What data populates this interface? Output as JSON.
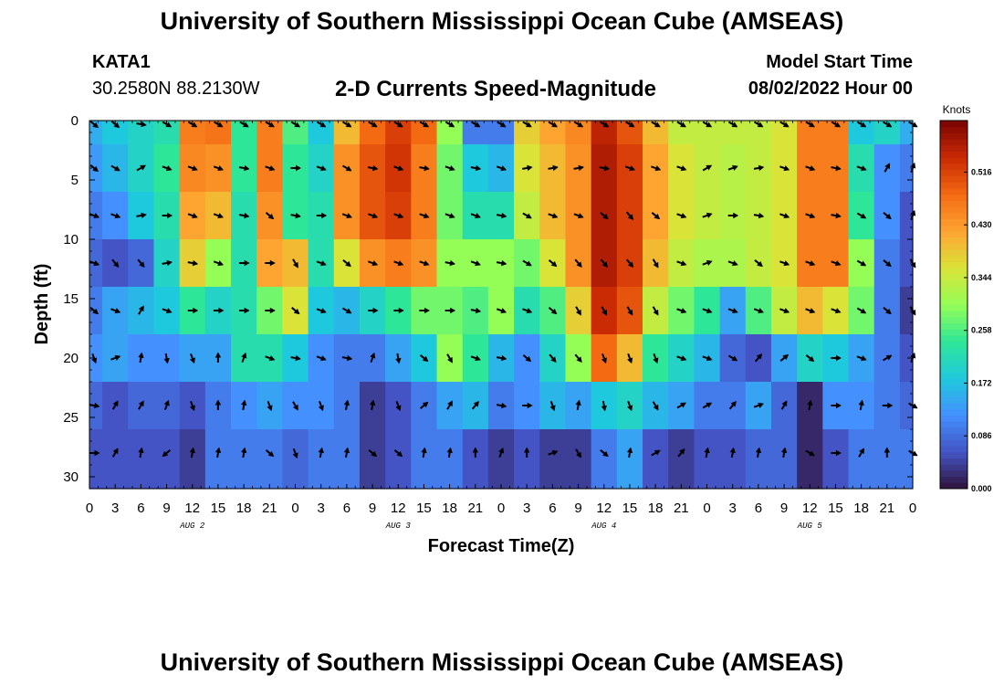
{
  "header": {
    "title": "University of Southern Mississippi Ocean Cube (AMSEAS)",
    "station": "KATA1",
    "coords": "30.2580N  88.2130W",
    "plot_title": "2-D Currents Speed-Magnitude",
    "model_label": "Model Start Time",
    "model_time": "08/02/2022 Hour 00"
  },
  "footer": {
    "title": "University of Southern Mississippi Ocean Cube (AMSEAS)"
  },
  "chart_data": {
    "type": "heatmap",
    "title": "2-D Currents Speed-Magnitude",
    "xlabel": "Forecast Time(Z)",
    "ylabel": "Depth (ft)",
    "xlim": [
      0,
      96
    ],
    "ylim": [
      0,
      31
    ],
    "x_tick_labels": [
      "0",
      "3",
      "6",
      "9",
      "12",
      "15",
      "18",
      "21",
      "0",
      "3",
      "6",
      "9",
      "12",
      "15",
      "18",
      "21",
      "0",
      "3",
      "6",
      "9",
      "12",
      "15",
      "18",
      "21",
      "0",
      "3",
      "6",
      "9",
      "12",
      "15",
      "18",
      "21",
      "0"
    ],
    "y_ticks": [
      0,
      5,
      10,
      15,
      20,
      25,
      30
    ],
    "y_tick_labels": [
      "0",
      "5",
      "10",
      "15",
      "20",
      "25",
      "30"
    ],
    "date_labels": [
      {
        "label": "AUG 2",
        "hour": 12
      },
      {
        "label": "AUG 3",
        "hour": 36
      },
      {
        "label": "AUG 4",
        "hour": 60
      },
      {
        "label": "AUG 5",
        "hour": 84
      }
    ],
    "colorbar": {
      "title": "Knots",
      "ticks": [
        0.0,
        0.086,
        0.172,
        0.258,
        0.344,
        0.43,
        0.516
      ],
      "tick_labels": [
        "0.000",
        "0.086",
        "0.172",
        "0.258",
        "0.344",
        "0.430",
        "0.516"
      ],
      "range": [
        0,
        0.6
      ],
      "colors": [
        "#30123b",
        "#4454c4",
        "#4490fe",
        "#1fc9dd",
        "#2ee697",
        "#94fe57",
        "#dae338",
        "#fea431",
        "#f36a13",
        "#ca2a04",
        "#7a0403"
      ]
    },
    "depths": [
      0,
      4,
      8,
      12,
      16,
      20,
      24,
      28
    ],
    "times": [
      0,
      3,
      6,
      9,
      12,
      15,
      18,
      21,
      24,
      27,
      30,
      33,
      36,
      39,
      42,
      45,
      48,
      51,
      54,
      57,
      60,
      63,
      66,
      69,
      72,
      75,
      78,
      81,
      84,
      87,
      90,
      93,
      96
    ],
    "speed_knots": [
      [
        0.15,
        0.18,
        0.2,
        0.22,
        0.46,
        0.47,
        0.24,
        0.46,
        0.26,
        0.18,
        0.4,
        0.48,
        0.52,
        0.48,
        0.3,
        0.1,
        0.1,
        0.38,
        0.42,
        0.45,
        0.55,
        0.5,
        0.4,
        0.34,
        0.34,
        0.34,
        0.34,
        0.36,
        0.46,
        0.46,
        0.18,
        0.2,
        0.15
      ],
      [
        0.13,
        0.16,
        0.2,
        0.24,
        0.45,
        0.44,
        0.24,
        0.46,
        0.24,
        0.2,
        0.44,
        0.5,
        0.53,
        0.46,
        0.28,
        0.18,
        0.16,
        0.36,
        0.4,
        0.44,
        0.56,
        0.52,
        0.42,
        0.36,
        0.34,
        0.33,
        0.34,
        0.36,
        0.46,
        0.46,
        0.22,
        0.12,
        0.1
      ],
      [
        0.1,
        0.12,
        0.18,
        0.22,
        0.42,
        0.4,
        0.22,
        0.44,
        0.24,
        0.22,
        0.44,
        0.5,
        0.52,
        0.46,
        0.28,
        0.22,
        0.22,
        0.34,
        0.4,
        0.44,
        0.56,
        0.52,
        0.42,
        0.36,
        0.34,
        0.33,
        0.34,
        0.36,
        0.46,
        0.46,
        0.24,
        0.12,
        0.06
      ],
      [
        0.08,
        0.06,
        0.08,
        0.2,
        0.38,
        0.3,
        0.22,
        0.42,
        0.4,
        0.22,
        0.36,
        0.44,
        0.46,
        0.44,
        0.3,
        0.3,
        0.3,
        0.28,
        0.36,
        0.44,
        0.56,
        0.52,
        0.4,
        0.34,
        0.32,
        0.32,
        0.34,
        0.36,
        0.46,
        0.46,
        0.3,
        0.1,
        0.06
      ],
      [
        0.1,
        0.14,
        0.16,
        0.18,
        0.24,
        0.2,
        0.22,
        0.28,
        0.36,
        0.18,
        0.16,
        0.2,
        0.24,
        0.28,
        0.28,
        0.26,
        0.3,
        0.22,
        0.26,
        0.38,
        0.54,
        0.5,
        0.34,
        0.28,
        0.24,
        0.14,
        0.26,
        0.34,
        0.4,
        0.36,
        0.28,
        0.1,
        0.04
      ],
      [
        0.12,
        0.14,
        0.12,
        0.12,
        0.14,
        0.14,
        0.22,
        0.22,
        0.18,
        0.12,
        0.1,
        0.1,
        0.14,
        0.18,
        0.3,
        0.24,
        0.16,
        0.12,
        0.2,
        0.3,
        0.48,
        0.4,
        0.24,
        0.2,
        0.16,
        0.08,
        0.06,
        0.14,
        0.2,
        0.18,
        0.14,
        0.1,
        0.06
      ],
      [
        0.08,
        0.06,
        0.08,
        0.08,
        0.06,
        0.1,
        0.12,
        0.14,
        0.12,
        0.12,
        0.1,
        0.04,
        0.06,
        0.1,
        0.14,
        0.16,
        0.1,
        0.12,
        0.16,
        0.14,
        0.18,
        0.2,
        0.16,
        0.14,
        0.1,
        0.1,
        0.14,
        0.08,
        0.02,
        0.12,
        0.12,
        0.1,
        0.08
      ],
      [
        0.06,
        0.06,
        0.06,
        0.06,
        0.04,
        0.1,
        0.1,
        0.1,
        0.08,
        0.1,
        0.1,
        0.04,
        0.06,
        0.1,
        0.1,
        0.06,
        0.04,
        0.06,
        0.04,
        0.04,
        0.1,
        0.14,
        0.06,
        0.04,
        0.06,
        0.06,
        0.08,
        0.08,
        0.02,
        0.06,
        0.1,
        0.1,
        0.1
      ]
    ],
    "direction_deg": [
      [
        130,
        130,
        100,
        120,
        120,
        120,
        120,
        120,
        120,
        120,
        120,
        120,
        120,
        120,
        120,
        120,
        120,
        120,
        120,
        120,
        120,
        120,
        120,
        120,
        120,
        120,
        120,
        120,
        120,
        120,
        120,
        120,
        120
      ],
      [
        130,
        120,
        60,
        110,
        110,
        110,
        100,
        110,
        90,
        110,
        120,
        100,
        110,
        100,
        110,
        100,
        110,
        80,
        80,
        80,
        100,
        110,
        110,
        110,
        60,
        70,
        80,
        110,
        110,
        100,
        110,
        30,
        20
      ],
      [
        110,
        110,
        80,
        90,
        110,
        110,
        100,
        130,
        100,
        90,
        110,
        110,
        110,
        110,
        110,
        110,
        100,
        120,
        110,
        110,
        130,
        140,
        130,
        110,
        70,
        90,
        100,
        110,
        110,
        100,
        120,
        130,
        20
      ],
      [
        110,
        140,
        140,
        80,
        100,
        110,
        90,
        90,
        150,
        110,
        130,
        110,
        110,
        110,
        100,
        110,
        100,
        120,
        130,
        140,
        140,
        140,
        150,
        110,
        70,
        110,
        130,
        110,
        110,
        110,
        120,
        130,
        150
      ],
      [
        130,
        110,
        30,
        110,
        90,
        90,
        90,
        90,
        130,
        110,
        120,
        90,
        90,
        90,
        90,
        100,
        110,
        110,
        130,
        150,
        150,
        150,
        150,
        110,
        110,
        110,
        110,
        110,
        110,
        110,
        120,
        130,
        150
      ],
      [
        160,
        70,
        10,
        170,
        160,
        0,
        20,
        110,
        100,
        110,
        100,
        20,
        170,
        130,
        150,
        110,
        100,
        130,
        140,
        140,
        160,
        160,
        160,
        110,
        110,
        120,
        40,
        50,
        130,
        90,
        110,
        60,
        20
      ],
      [
        100,
        30,
        30,
        20,
        160,
        0,
        10,
        160,
        150,
        160,
        10,
        10,
        160,
        50,
        30,
        40,
        100,
        90,
        160,
        10,
        170,
        160,
        150,
        60,
        60,
        40,
        70,
        30,
        10,
        90,
        10,
        90,
        120
      ],
      [
        90,
        30,
        10,
        230,
        10,
        10,
        10,
        130,
        160,
        10,
        10,
        130,
        130,
        10,
        10,
        0,
        20,
        0,
        70,
        150,
        130,
        10,
        60,
        40,
        10,
        10,
        10,
        10,
        120,
        90,
        30,
        0,
        120
      ]
    ]
  }
}
